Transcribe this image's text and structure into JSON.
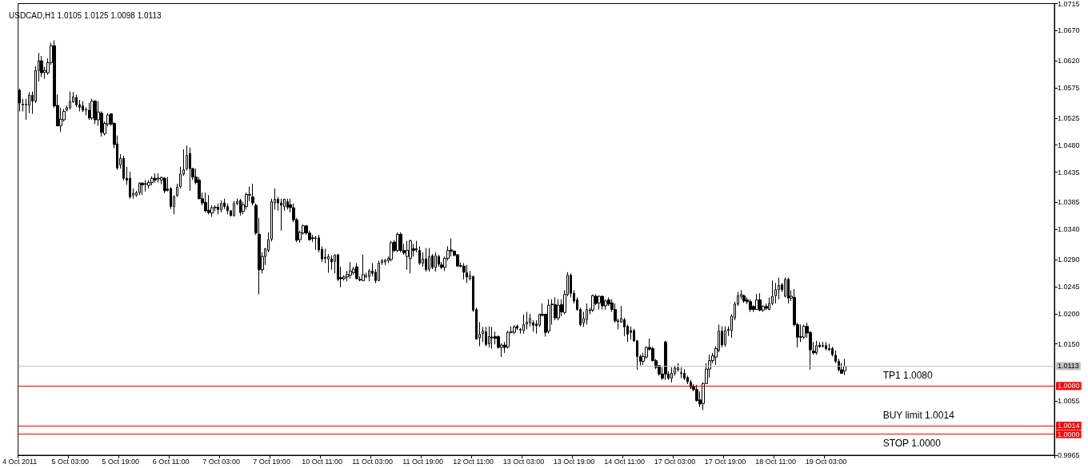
{
  "chart_data": {
    "type": "candlestick",
    "title": "USDCAD,H1 1.0105 1.0125 1.0098 1.0113",
    "color": "#000000",
    "categories": [
      "4 Oct 2011",
      null,
      null,
      null,
      null,
      null,
      null,
      null,
      null,
      null,
      null,
      null,
      null,
      null,
      null,
      null,
      "5 Oct 03:00",
      null,
      null,
      null,
      null,
      null,
      null,
      null,
      null,
      null,
      null,
      null,
      null,
      null,
      null,
      null,
      "5 Oct 19:00",
      null,
      null,
      null,
      null,
      null,
      null,
      null,
      null,
      null,
      null,
      null,
      null,
      null,
      null,
      null,
      "6 Oct 11:00",
      null,
      null,
      null,
      null,
      null,
      null,
      null,
      null,
      null,
      null,
      null,
      null,
      null,
      null,
      null,
      "7 Oct 03:00",
      null,
      null,
      null,
      null,
      null,
      null,
      null,
      null,
      null,
      null,
      null,
      null,
      null,
      null,
      null,
      "7 Oct 19:00",
      null,
      null,
      null,
      null,
      null,
      null,
      null,
      null,
      null,
      null,
      null,
      null,
      null,
      null,
      null,
      "10 Oct 11:00",
      null,
      null,
      null,
      null,
      null,
      null,
      null,
      null,
      null,
      null,
      null,
      null,
      null,
      null,
      null,
      "11 Oct 03:00",
      null,
      null,
      null,
      null,
      null,
      null,
      null,
      null,
      null,
      null,
      null,
      null,
      null,
      null,
      null,
      "11 Oct 19:00",
      null,
      null,
      null,
      null,
      null,
      null,
      null,
      null,
      null,
      null,
      null,
      null,
      null,
      null,
      null,
      "12 Oct 11:00",
      null,
      null,
      null,
      null,
      null,
      null,
      null,
      null,
      null,
      null,
      null,
      null,
      null,
      null,
      null,
      "13 Oct 03:00",
      null,
      null,
      null,
      null,
      null,
      null,
      null,
      null,
      null,
      null,
      null,
      null,
      null,
      null,
      null,
      "13 Oct 19:00",
      null,
      null,
      null,
      null,
      null,
      null,
      null,
      null,
      null,
      null,
      null,
      null,
      null,
      null,
      null,
      "14 Oct 11:00",
      null,
      null,
      null,
      null,
      null,
      null,
      null,
      null,
      null,
      null,
      null,
      null,
      null,
      null,
      null,
      "17 Oct 03:00",
      null,
      null,
      null,
      null,
      null,
      null,
      null,
      null,
      null,
      null,
      null,
      null,
      null,
      null,
      null,
      "17 Oct 19:00",
      null,
      null,
      null,
      null,
      null,
      null,
      null,
      null,
      null,
      null,
      null,
      null,
      null,
      null,
      null,
      "18 Oct 11:00",
      null,
      null,
      null,
      null,
      null,
      null,
      null,
      null,
      null,
      null,
      null,
      null,
      null,
      null,
      null,
      "19 Oct 03:00",
      null,
      null,
      null,
      null,
      null,
      null,
      null,
      null,
      null,
      null,
      null,
      null,
      null,
      null,
      null,
      null,
      null,
      null,
      null,
      null,
      null,
      null,
      null,
      null,
      null,
      null,
      null,
      null,
      null,
      null,
      null,
      null,
      null,
      null,
      null,
      null,
      null,
      null,
      null,
      null,
      null,
      null,
      null,
      null,
      null,
      null,
      null,
      null,
      null,
      null,
      null,
      null,
      null,
      null,
      null,
      null,
      null,
      null,
      null,
      null,
      null,
      null,
      null,
      null,
      null,
      null,
      null,
      null,
      null,
      null,
      null,
      null
    ],
    "ohlc": [
      [
        1.0571,
        1.0574,
        1.0536,
        1.055
      ],
      [
        1.0548,
        1.0557,
        1.0536,
        1.0547
      ],
      [
        1.0547,
        1.0557,
        1.0522,
        1.0548
      ],
      [
        1.0546,
        1.0568,
        1.0533,
        1.0563
      ],
      [
        1.0563,
        1.0569,
        1.0532,
        1.0553
      ],
      [
        1.0553,
        1.0611,
        1.055,
        1.0604
      ],
      [
        1.0604,
        1.0633,
        1.0586,
        1.062
      ],
      [
        1.062,
        1.0628,
        1.0593,
        1.06
      ],
      [
        1.0601,
        1.061,
        1.059,
        1.0604
      ],
      [
        1.06,
        1.0624,
        1.0597,
        1.0617
      ],
      [
        1.0617,
        1.065,
        1.0613,
        1.0645
      ],
      [
        1.0645,
        1.0654,
        1.0542,
        1.0545
      ],
      [
        1.0546,
        1.0564,
        1.0511,
        1.0512
      ],
      [
        1.0512,
        1.0542,
        1.0502,
        1.0523
      ],
      [
        1.0522,
        1.054,
        1.0519,
        1.0536
      ],
      [
        1.0538,
        1.0546,
        1.0536,
        1.0542
      ],
      [
        1.0542,
        1.0569,
        1.0539,
        1.0552
      ],
      [
        1.0552,
        1.0568,
        1.055,
        1.056
      ],
      [
        1.0559,
        1.0564,
        1.0543,
        1.0547
      ],
      [
        1.0547,
        1.0555,
        1.0536,
        1.0543
      ],
      [
        1.0545,
        1.0553,
        1.0535,
        1.0538
      ],
      [
        1.0538,
        1.0543,
        1.0529,
        1.0539
      ],
      [
        1.0538,
        1.055,
        1.0522,
        1.0525
      ],
      [
        1.0525,
        1.0557,
        1.0522,
        1.0553
      ],
      [
        1.0553,
        1.0555,
        1.0515,
        1.0522
      ],
      [
        1.0522,
        1.0553,
        1.0512,
        1.0535
      ],
      [
        1.0533,
        1.0536,
        1.0494,
        1.0501
      ],
      [
        1.0499,
        1.0519,
        1.0496,
        1.0516
      ],
      [
        1.0515,
        1.0533,
        1.0511,
        1.053
      ],
      [
        1.0532,
        1.0533,
        1.0512,
        1.0515
      ],
      [
        1.0516,
        1.0518,
        1.0475,
        1.0481
      ],
      [
        1.0482,
        1.0496,
        1.0439,
        1.0442
      ],
      [
        1.0447,
        1.0465,
        1.0441,
        1.0458
      ],
      [
        1.0458,
        1.0462,
        1.0421,
        1.0425
      ],
      [
        1.0425,
        1.0444,
        1.0414,
        1.0422
      ],
      [
        1.0425,
        1.0436,
        1.0391,
        1.0394
      ],
      [
        1.0397,
        1.0408,
        1.0391,
        1.04
      ],
      [
        1.0397,
        1.0404,
        1.0394,
        1.0401
      ],
      [
        1.0401,
        1.0418,
        1.0397,
        1.0417
      ],
      [
        1.0417,
        1.0418,
        1.0397,
        1.0414
      ],
      [
        1.0415,
        1.0422,
        1.0403,
        1.0416
      ],
      [
        1.0413,
        1.0422,
        1.0408,
        1.0418
      ],
      [
        1.0418,
        1.0428,
        1.0413,
        1.0425
      ],
      [
        1.0425,
        1.0433,
        1.0418,
        1.0422
      ],
      [
        1.0424,
        1.0433,
        1.0418,
        1.0425
      ],
      [
        1.0422,
        1.0428,
        1.0415,
        1.0426
      ],
      [
        1.0425,
        1.0427,
        1.04,
        1.0404
      ],
      [
        1.0407,
        1.0427,
        1.0403,
        1.0405
      ],
      [
        1.0408,
        1.041,
        1.0374,
        1.0378
      ],
      [
        1.0378,
        1.0397,
        1.0365,
        1.0394
      ],
      [
        1.0396,
        1.0416,
        1.0394,
        1.041
      ],
      [
        1.0411,
        1.0444,
        1.0408,
        1.0432
      ],
      [
        1.0432,
        1.0473,
        1.0429,
        1.0439
      ],
      [
        1.0441,
        1.0479,
        1.0438,
        1.0463
      ],
      [
        1.0466,
        1.0476,
        1.0404,
        1.0441
      ],
      [
        1.0441,
        1.0442,
        1.0422,
        1.0427
      ],
      [
        1.0427,
        1.0441,
        1.0415,
        1.0418
      ],
      [
        1.0422,
        1.0427,
        1.039,
        1.0391
      ],
      [
        1.0391,
        1.0401,
        1.038,
        1.0384
      ],
      [
        1.0385,
        1.0401,
        1.0368,
        1.0371
      ],
      [
        1.0372,
        1.0397,
        1.0365,
        1.0368
      ],
      [
        1.0367,
        1.038,
        1.0361,
        1.0376
      ],
      [
        1.0376,
        1.038,
        1.037,
        1.0377
      ],
      [
        1.0377,
        1.0383,
        1.0365,
        1.0373
      ],
      [
        1.0373,
        1.0388,
        1.0368,
        1.0383
      ],
      [
        1.0384,
        1.0391,
        1.0374,
        1.0378
      ],
      [
        1.0378,
        1.0383,
        1.0365,
        1.0371
      ],
      [
        1.0371,
        1.0372,
        1.0361,
        1.0363
      ],
      [
        1.0363,
        1.0387,
        1.0361,
        1.0383
      ],
      [
        1.0383,
        1.0391,
        1.038,
        1.0386
      ],
      [
        1.0388,
        1.0391,
        1.0363,
        1.0368
      ],
      [
        1.037,
        1.0386,
        1.0365,
        1.0381
      ],
      [
        1.0378,
        1.0401,
        1.0373,
        1.0398
      ],
      [
        1.0397,
        1.0411,
        1.0387,
        1.0398
      ],
      [
        1.0394,
        1.0416,
        1.038,
        1.0384
      ],
      [
        1.038,
        1.0383,
        1.0331,
        1.0334
      ],
      [
        1.0332,
        1.0359,
        1.0232,
        1.0273
      ],
      [
        1.0273,
        1.0302,
        1.0267,
        1.0295
      ],
      [
        1.0295,
        1.0309,
        1.0281,
        1.0308
      ],
      [
        1.0305,
        1.0335,
        1.0302,
        1.0323
      ],
      [
        1.0324,
        1.0391,
        1.032,
        1.0386
      ],
      [
        1.0384,
        1.0408,
        1.0373,
        1.039
      ],
      [
        1.039,
        1.0394,
        1.0371,
        1.0384
      ],
      [
        1.0384,
        1.0391,
        1.0338,
        1.038
      ],
      [
        1.0378,
        1.0391,
        1.0371,
        1.039
      ],
      [
        1.0386,
        1.0391,
        1.0373,
        1.0377
      ],
      [
        1.0381,
        1.0391,
        1.0368,
        1.0376
      ],
      [
        1.0376,
        1.0383,
        1.0352,
        1.0356
      ],
      [
        1.0356,
        1.0359,
        1.0319,
        1.0322
      ],
      [
        1.0323,
        1.0338,
        1.0318,
        1.0335
      ],
      [
        1.0334,
        1.0348,
        1.0331,
        1.0346
      ],
      [
        1.0346,
        1.0347,
        1.0331,
        1.0334
      ],
      [
        1.0334,
        1.0338,
        1.0321,
        1.0323
      ],
      [
        1.0326,
        1.0331,
        1.0319,
        1.0325
      ],
      [
        1.0325,
        1.0329,
        1.0306,
        1.0326
      ],
      [
        1.0326,
        1.0331,
        1.0302,
        1.0306
      ],
      [
        1.0307,
        1.0312,
        1.0286,
        1.0291
      ],
      [
        1.0294,
        1.0308,
        1.0284,
        1.0292
      ],
      [
        1.0291,
        1.0299,
        1.0268,
        1.0295
      ],
      [
        1.0291,
        1.0297,
        1.0273,
        1.0286
      ],
      [
        1.0287,
        1.0299,
        1.0267,
        1.0297
      ],
      [
        1.0298,
        1.0299,
        1.0254,
        1.0257
      ],
      [
        1.026,
        1.0278,
        1.0244,
        1.0258
      ],
      [
        1.0258,
        1.0264,
        1.0255,
        1.0261
      ],
      [
        1.0261,
        1.0271,
        1.0254,
        1.0265
      ],
      [
        1.0264,
        1.0286,
        1.0258,
        1.0271
      ],
      [
        1.0268,
        1.0278,
        1.0265,
        1.0274
      ],
      [
        1.0278,
        1.0284,
        1.0257,
        1.0258
      ],
      [
        1.0257,
        1.0262,
        1.0254,
        1.0256
      ],
      [
        1.0255,
        1.0298,
        1.0254,
        1.0265
      ],
      [
        1.0262,
        1.0268,
        1.0259,
        1.0263
      ],
      [
        1.0262,
        1.0274,
        1.0254,
        1.0271
      ],
      [
        1.0271,
        1.0284,
        1.0262,
        1.0267
      ],
      [
        1.0269,
        1.0274,
        1.0251,
        1.0255
      ],
      [
        1.0255,
        1.0288,
        1.0254,
        1.0284
      ],
      [
        1.0285,
        1.0291,
        1.0281,
        1.0288
      ],
      [
        1.0286,
        1.0291,
        1.0281,
        1.0289
      ],
      [
        1.0288,
        1.0295,
        1.0284,
        1.0292
      ],
      [
        1.029,
        1.0321,
        1.0287,
        1.0318
      ],
      [
        1.0319,
        1.0322,
        1.0302,
        1.0305
      ],
      [
        1.0305,
        1.0335,
        1.0302,
        1.0332
      ],
      [
        1.0332,
        1.0335,
        1.0302,
        1.0305
      ],
      [
        1.0305,
        1.0316,
        1.0298,
        1.0301
      ],
      [
        1.0295,
        1.0321,
        1.0273,
        1.0305
      ],
      [
        1.0292,
        1.0323,
        1.0267,
        1.0321
      ],
      [
        1.0308,
        1.0316,
        1.0295,
        1.0305
      ],
      [
        1.0306,
        1.0321,
        1.0302,
        1.0308
      ],
      [
        1.0305,
        1.0312,
        1.0281,
        1.0284
      ],
      [
        1.0284,
        1.0302,
        1.0278,
        1.0291
      ],
      [
        1.0291,
        1.0309,
        1.027,
        1.0273
      ],
      [
        1.0274,
        1.0309,
        1.027,
        1.0295
      ],
      [
        1.0296,
        1.0299,
        1.0274,
        1.0277
      ],
      [
        1.0277,
        1.0302,
        1.027,
        1.0296
      ],
      [
        1.0295,
        1.0298,
        1.0278,
        1.0282
      ],
      [
        1.0281,
        1.0286,
        1.0274,
        1.0277
      ],
      [
        1.0277,
        1.0295,
        1.0271,
        1.0292
      ],
      [
        1.0292,
        1.0312,
        1.0288,
        1.0305
      ],
      [
        1.0306,
        1.0325,
        1.0295,
        1.0304
      ],
      [
        1.0304,
        1.0305,
        1.0295,
        1.0297
      ],
      [
        1.0298,
        1.0299,
        1.0279,
        1.0279
      ],
      [
        1.0279,
        1.0285,
        1.0277,
        1.028
      ],
      [
        1.0279,
        1.0284,
        1.0257,
        1.0269
      ],
      [
        1.0268,
        1.0281,
        1.0251,
        1.0261
      ],
      [
        1.0258,
        1.0271,
        1.0255,
        1.0263
      ],
      [
        1.0262,
        1.0263,
        1.0203,
        1.0206
      ],
      [
        1.0207,
        1.021,
        1.0157,
        1.0158
      ],
      [
        1.016,
        1.0186,
        1.0146,
        1.0166
      ],
      [
        1.0167,
        1.0178,
        1.0153,
        1.0171
      ],
      [
        1.017,
        1.0178,
        1.0146,
        1.0149
      ],
      [
        1.015,
        1.0179,
        1.0144,
        1.0162
      ],
      [
        1.0161,
        1.0178,
        1.0142,
        1.016
      ],
      [
        1.0162,
        1.017,
        1.0149,
        1.0159
      ],
      [
        1.0162,
        1.0164,
        1.0142,
        1.0144
      ],
      [
        1.0144,
        1.0151,
        1.0128,
        1.0148
      ],
      [
        1.0148,
        1.0153,
        1.0135,
        1.0144
      ],
      [
        1.0145,
        1.0172,
        1.0142,
        1.0169
      ],
      [
        1.0169,
        1.0179,
        1.0167,
        1.017
      ],
      [
        1.0169,
        1.0181,
        1.0166,
        1.0178
      ],
      [
        1.0179,
        1.0182,
        1.0173,
        1.0176
      ],
      [
        1.0174,
        1.0176,
        1.0167,
        1.0173
      ],
      [
        1.0172,
        1.0199,
        1.0167,
        1.0182
      ],
      [
        1.0183,
        1.0203,
        1.0174,
        1.0186
      ],
      [
        1.0185,
        1.02,
        1.0179,
        1.0192
      ],
      [
        1.0185,
        1.0189,
        1.017,
        1.0181
      ],
      [
        1.0183,
        1.0189,
        1.0167,
        1.018
      ],
      [
        1.0181,
        1.02,
        1.0178,
        1.0199
      ],
      [
        1.0199,
        1.0217,
        1.0196,
        1.0197
      ],
      [
        1.0199,
        1.02,
        1.0162,
        1.0169
      ],
      [
        1.0171,
        1.0224,
        1.0167,
        1.0214
      ],
      [
        1.0215,
        1.0224,
        1.0182,
        1.0216
      ],
      [
        1.0215,
        1.0227,
        1.0189,
        1.0193
      ],
      [
        1.0193,
        1.0224,
        1.0189,
        1.0214
      ],
      [
        1.0215,
        1.0224,
        1.0196,
        1.0203
      ],
      [
        1.0202,
        1.0239,
        1.0199,
        1.0232
      ],
      [
        1.0232,
        1.0269,
        1.0229,
        1.0264
      ],
      [
        1.0264,
        1.0267,
        1.0227,
        1.0234
      ],
      [
        1.0234,
        1.0239,
        1.0217,
        1.0221
      ],
      [
        1.0223,
        1.0227,
        1.0205,
        1.0207
      ],
      [
        1.0207,
        1.021,
        1.0179,
        1.0182
      ],
      [
        1.0185,
        1.0203,
        1.0178,
        1.0192
      ],
      [
        1.019,
        1.0217,
        1.0182,
        1.0207
      ],
      [
        1.0206,
        1.021,
        1.0199,
        1.0205
      ],
      [
        1.0206,
        1.0232,
        1.0203,
        1.023
      ],
      [
        1.0229,
        1.0232,
        1.0214,
        1.0217
      ],
      [
        1.0218,
        1.023,
        1.0207,
        1.0229
      ],
      [
        1.0229,
        1.023,
        1.0207,
        1.0213
      ],
      [
        1.0213,
        1.0224,
        1.0207,
        1.0221
      ],
      [
        1.0223,
        1.0227,
        1.0213,
        1.0216
      ],
      [
        1.0218,
        1.0224,
        1.0203,
        1.0207
      ],
      [
        1.0207,
        1.0217,
        1.0185,
        1.0188
      ],
      [
        1.0188,
        1.0192,
        1.0174,
        1.0187
      ],
      [
        1.0186,
        1.0213,
        1.0185,
        1.0192
      ],
      [
        1.019,
        1.0193,
        1.0163,
        1.0178
      ],
      [
        1.0179,
        1.0182,
        1.0153,
        1.0166
      ],
      [
        1.0172,
        1.0179,
        1.0157,
        1.0169
      ],
      [
        1.0172,
        1.0175,
        1.0153,
        1.0155
      ],
      [
        1.0155,
        1.0156,
        1.0107,
        1.0129
      ],
      [
        1.0129,
        1.0132,
        1.0114,
        1.0121
      ],
      [
        1.0121,
        1.0135,
        1.0115,
        1.0129
      ],
      [
        1.0128,
        1.0146,
        1.0125,
        1.0144
      ],
      [
        1.0144,
        1.0159,
        1.0139,
        1.0141
      ],
      [
        1.0142,
        1.0145,
        1.0121,
        1.0122
      ],
      [
        1.0122,
        1.0125,
        1.0108,
        1.0111
      ],
      [
        1.0114,
        1.0115,
        1.0097,
        1.01
      ],
      [
        1.01,
        1.0111,
        1.009,
        1.0093
      ],
      [
        1.0153,
        1.0155,
        1.009,
        1.01
      ],
      [
        1.01,
        1.0104,
        1.009,
        1.0093
      ],
      [
        1.0093,
        1.0111,
        1.0086,
        1.0101
      ],
      [
        1.0101,
        1.0114,
        1.0097,
        1.011
      ],
      [
        1.0107,
        1.0118,
        1.0104,
        1.011
      ],
      [
        1.0101,
        1.0111,
        1.0093,
        1.0102
      ],
      [
        1.0101,
        1.0108,
        1.009,
        1.0093
      ],
      [
        1.0094,
        1.0097,
        1.0083,
        1.0087
      ],
      [
        1.0086,
        1.009,
        1.0075,
        1.0078
      ],
      [
        1.0079,
        1.0083,
        1.0071,
        1.0074
      ],
      [
        1.0074,
        1.0082,
        1.0054,
        1.0056
      ],
      [
        1.0057,
        1.0071,
        1.0045,
        1.005
      ],
      [
        1.0051,
        1.0086,
        1.004,
        1.0084
      ],
      [
        1.0084,
        1.0118,
        1.0083,
        1.0108
      ],
      [
        1.0108,
        1.0132,
        1.0094,
        1.0122
      ],
      [
        1.0122,
        1.0135,
        1.0118,
        1.013
      ],
      [
        1.0128,
        1.0146,
        1.0115,
        1.0142
      ],
      [
        1.0139,
        1.0182,
        1.0136,
        1.0171
      ],
      [
        1.0171,
        1.0179,
        1.0144,
        1.0148
      ],
      [
        1.0149,
        1.0179,
        1.0145,
        1.0172
      ],
      [
        1.0172,
        1.0179,
        1.0163,
        1.0174
      ],
      [
        1.0172,
        1.0199,
        1.016,
        1.0196
      ],
      [
        1.0193,
        1.022,
        1.0189,
        1.0216
      ],
      [
        1.0216,
        1.0236,
        1.0213,
        1.023
      ],
      [
        1.0229,
        1.0239,
        1.0224,
        1.0232
      ],
      [
        1.023,
        1.0232,
        1.0218,
        1.0221
      ],
      [
        1.0223,
        1.0227,
        1.0216,
        1.022
      ],
      [
        1.022,
        1.0224,
        1.0203,
        1.0207
      ],
      [
        1.0212,
        1.0214,
        1.0203,
        1.0207
      ],
      [
        1.0207,
        1.0233,
        1.0206,
        1.0223
      ],
      [
        1.0223,
        1.0234,
        1.0204,
        1.0206
      ],
      [
        1.0206,
        1.0214,
        1.0203,
        1.0212
      ],
      [
        1.0212,
        1.0217,
        1.0206,
        1.0209
      ],
      [
        1.0207,
        1.0227,
        1.0206,
        1.0217
      ],
      [
        1.0217,
        1.0255,
        1.0214,
        1.0229
      ],
      [
        1.023,
        1.0251,
        1.0217,
        1.024
      ],
      [
        1.024,
        1.026,
        1.0224,
        1.0247
      ],
      [
        1.0248,
        1.0251,
        1.0236,
        1.024
      ],
      [
        1.0229,
        1.026,
        1.0227,
        1.0257
      ],
      [
        1.0257,
        1.026,
        1.0217,
        1.0226
      ],
      [
        1.0226,
        1.0239,
        1.0221,
        1.0229
      ],
      [
        1.0227,
        1.0241,
        1.0179,
        1.0182
      ],
      [
        1.0182,
        1.0185,
        1.0144,
        1.0161
      ],
      [
        1.0162,
        1.0182,
        1.0153,
        1.0161
      ],
      [
        1.0161,
        1.0182,
        1.0158,
        1.0179
      ],
      [
        1.0179,
        1.0185,
        1.016,
        1.0168
      ],
      [
        1.0169,
        1.0171,
        1.0107,
        1.014
      ],
      [
        1.0138,
        1.0153,
        1.0132,
        1.0135
      ],
      [
        1.0135,
        1.0155,
        1.0132,
        1.0147
      ],
      [
        1.0148,
        1.0153,
        1.0144,
        1.0145
      ],
      [
        1.0147,
        1.0153,
        1.0144,
        1.0146
      ],
      [
        1.0147,
        1.0153,
        1.0139,
        1.0142
      ],
      [
        1.0142,
        1.015,
        1.0139,
        1.014
      ],
      [
        1.0142,
        1.0145,
        1.0129,
        1.0132
      ],
      [
        1.0131,
        1.0139,
        1.0118,
        1.0121
      ],
      [
        1.0121,
        1.0125,
        1.0104,
        1.0107
      ],
      [
        1.0107,
        1.0118,
        1.01,
        1.0101
      ],
      [
        1.0105,
        1.0125,
        1.0098,
        1.0113
      ],
      null,
      null,
      null,
      null,
      null,
      null,
      null,
      null,
      null,
      null,
      null,
      null,
      null,
      null,
      null,
      null,
      null,
      null,
      null,
      null,
      null,
      null,
      null,
      null,
      null,
      null,
      null,
      null,
      null,
      null,
      null,
      null,
      null,
      null,
      null,
      null,
      null,
      null,
      null,
      null,
      null,
      null,
      null,
      null,
      null,
      null,
      null,
      null,
      null,
      null,
      null,
      null,
      null,
      null,
      null,
      null,
      null,
      null,
      null,
      null,
      null,
      null,
      null,
      null,
      null,
      null
    ],
    "ylim": [
      0.9965,
      1.0715
    ],
    "yticks": [
      {
        "value": 1.0715,
        "label": "1.0715"
      },
      {
        "value": 1.067,
        "label": "1.0670"
      },
      {
        "value": 1.062,
        "label": "1.0620"
      },
      {
        "value": 1.0575,
        "label": "1.0575"
      },
      {
        "value": 1.0525,
        "label": "1.0525"
      },
      {
        "value": 1.048,
        "label": "1.0480"
      },
      {
        "value": 1.0435,
        "label": "1.0435"
      },
      {
        "value": 1.0385,
        "label": "1.0385"
      },
      {
        "value": 1.034,
        "label": "1.0340"
      },
      {
        "value": 1.029,
        "label": "1.0290"
      },
      {
        "value": 1.0245,
        "label": "1.0245"
      },
      {
        "value": 1.02,
        "label": "1.0200"
      },
      {
        "value": 1.015,
        "label": "1.0150"
      },
      {
        "value": 1.0055,
        "label": "1.0055"
      },
      {
        "value": 0.9965,
        "label": "0.9965"
      }
    ],
    "ref_lines": [
      {
        "axis": "y",
        "value": 1.0113,
        "label": "1.0113",
        "color": "#c0c0c0"
      },
      {
        "axis": "y",
        "value": 1.008,
        "label": "1.0080",
        "color": "#ff0000"
      },
      {
        "axis": "y",
        "value": 1.0014,
        "label": "1.0014",
        "color": "#ff0000"
      },
      {
        "axis": "y",
        "value": 1.0,
        "label": "1.0000",
        "color": "#ff0000"
      }
    ],
    "annotations": [
      {
        "text": "TP1 1.0080",
        "y": 1.008
      },
      {
        "text": "BUY limit 1.0014",
        "y": 1.0014
      },
      {
        "text": "STOP 1.0000",
        "y": 1.0
      }
    ]
  }
}
